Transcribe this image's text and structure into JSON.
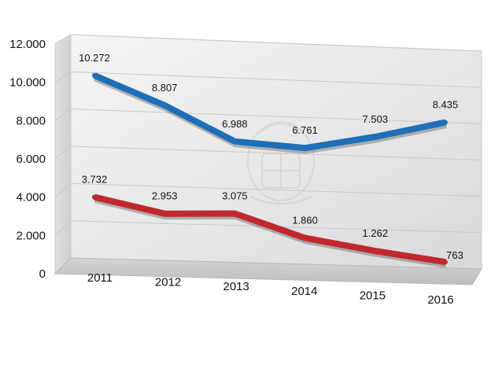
{
  "chart_data": {
    "type": "line",
    "categories": [
      "2011",
      "2012",
      "2013",
      "2014",
      "2015",
      "2016"
    ],
    "y_ticks": [
      "0",
      "2.000",
      "4.000",
      "6.000",
      "8.000",
      "10.000",
      "12.000"
    ],
    "ylim": [
      0,
      12000
    ],
    "grid": true,
    "legend": "none",
    "series": [
      {
        "color": "#1f6fb8",
        "values": [
          10272,
          8807,
          6988,
          6761,
          7503,
          8435
        ],
        "labels": [
          "10.272",
          "8.807",
          "6.988",
          "6.761",
          "7.503",
          "8.435"
        ]
      },
      {
        "color": "#c0282d",
        "values": [
          3732,
          2953,
          3075,
          1860,
          1262,
          763
        ],
        "labels": [
          "3.732",
          "2.953",
          "3.075",
          "1.860",
          "1.262",
          "763"
        ]
      }
    ]
  }
}
